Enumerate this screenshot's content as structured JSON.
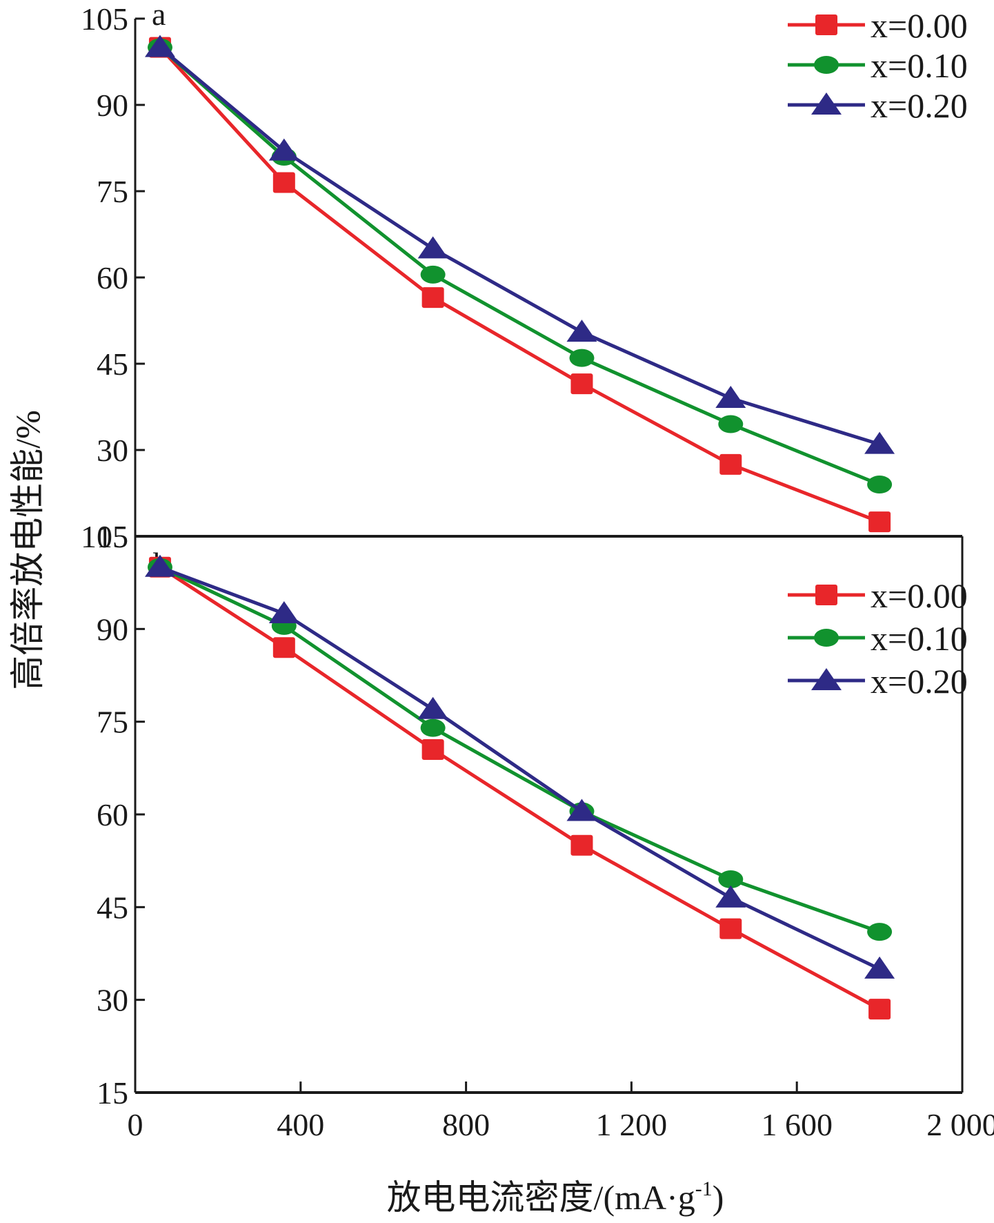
{
  "figure": {
    "ylabel": "高倍率放电性能/%",
    "xlabel_prefix": "放电电流密度/(mA·g",
    "xlabel_superscript": "-1",
    "xlabel_suffix": ")"
  },
  "colors": {
    "x000": "#e8262a",
    "x010": "#11922e",
    "x020": "#2e2a86",
    "axis": "#1a1a1a"
  },
  "chart_data": [
    {
      "type": "line",
      "panel": "a",
      "x": [
        60,
        360,
        720,
        1080,
        1440,
        1800
      ],
      "series": [
        {
          "name": "x=0.00",
          "marker": "square",
          "color": "#e8262a",
          "values": [
            100,
            76.5,
            56.5,
            41.5,
            27.5,
            17.5
          ]
        },
        {
          "name": "x=0.10",
          "marker": "circle",
          "color": "#11922e",
          "values": [
            100,
            81,
            60.5,
            46,
            34.5,
            24
          ]
        },
        {
          "name": "x=0.20",
          "marker": "triangle",
          "color": "#2e2a86",
          "values": [
            100,
            82,
            65,
            50.5,
            39,
            31
          ]
        }
      ],
      "xlim": [
        0,
        2000
      ],
      "ylim": [
        15,
        105
      ],
      "yticks": [
        15,
        30,
        45,
        60,
        75,
        90,
        105
      ],
      "legend_position": "top-right",
      "grid": false
    },
    {
      "type": "line",
      "panel": "b",
      "x": [
        60,
        360,
        720,
        1080,
        1440,
        1800
      ],
      "series": [
        {
          "name": "x=0.00",
          "marker": "square",
          "color": "#e8262a",
          "values": [
            100,
            87,
            70.5,
            55,
            41.5,
            28.5
          ]
        },
        {
          "name": "x=0.10",
          "marker": "circle",
          "color": "#11922e",
          "values": [
            100,
            90.5,
            74,
            60.5,
            49.5,
            41
          ]
        },
        {
          "name": "x=0.20",
          "marker": "triangle",
          "color": "#2e2a86",
          "values": [
            100,
            92.5,
            77,
            60.5,
            46.5,
            35
          ]
        }
      ],
      "xlim": [
        0,
        2000
      ],
      "ylim": [
        15,
        105
      ],
      "yticks": [
        15,
        30,
        45,
        60,
        75,
        90,
        105
      ],
      "xticks": [
        0,
        400,
        800,
        1200,
        1600,
        2000
      ],
      "xtick_labels": [
        "0",
        "400",
        "800",
        "1 200",
        "1 600",
        "2 000"
      ],
      "legend_position": "top-right",
      "grid": false
    }
  ]
}
